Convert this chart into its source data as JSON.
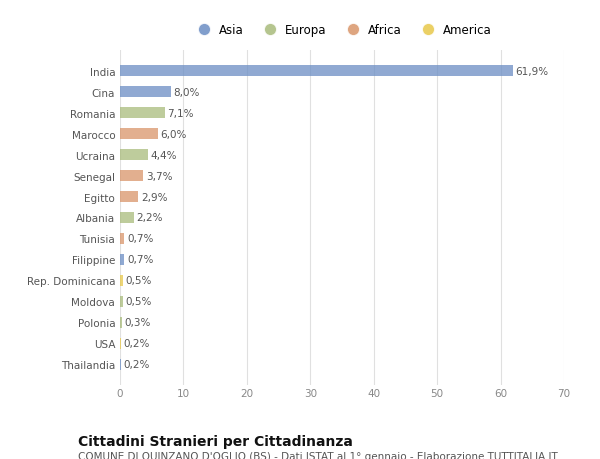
{
  "categories": [
    "India",
    "Cina",
    "Romania",
    "Marocco",
    "Ucraina",
    "Senegal",
    "Egitto",
    "Albania",
    "Tunisia",
    "Filippine",
    "Rep. Dominicana",
    "Moldova",
    "Polonia",
    "USA",
    "Thailandia"
  ],
  "values": [
    61.9,
    8.0,
    7.1,
    6.0,
    4.4,
    3.7,
    2.9,
    2.2,
    0.7,
    0.7,
    0.5,
    0.5,
    0.3,
    0.2,
    0.2
  ],
  "labels": [
    "61,9%",
    "8,0%",
    "7,1%",
    "6,0%",
    "4,4%",
    "3,7%",
    "2,9%",
    "2,2%",
    "0,7%",
    "0,7%",
    "0,5%",
    "0,5%",
    "0,3%",
    "0,2%",
    "0,2%"
  ],
  "colors": [
    "#6b8dc4",
    "#6b8dc4",
    "#a8bb7b",
    "#d9956a",
    "#a8bb7b",
    "#d9956a",
    "#d9956a",
    "#a8bb7b",
    "#d9956a",
    "#6b8dc4",
    "#e8c84a",
    "#a8bb7b",
    "#a8bb7b",
    "#e8c84a",
    "#6b8dc4"
  ],
  "legend_labels": [
    "Asia",
    "Europa",
    "Africa",
    "America"
  ],
  "legend_colors": [
    "#6b8dc4",
    "#a8bb7b",
    "#d9956a",
    "#e8c84a"
  ],
  "title": "Cittadini Stranieri per Cittadinanza",
  "subtitle": "COMUNE DI QUINZANO D'OGLIO (BS) - Dati ISTAT al 1° gennaio - Elaborazione TUTTITALIA.IT",
  "xlim": [
    0,
    70
  ],
  "xticks": [
    0,
    10,
    20,
    30,
    40,
    50,
    60,
    70
  ],
  "background_color": "#ffffff",
  "plot_bg_color": "#ffffff",
  "grid_color": "#e0e0e0",
  "title_fontsize": 10,
  "subtitle_fontsize": 7.5,
  "label_fontsize": 7.5,
  "tick_fontsize": 7.5,
  "legend_fontsize": 8.5
}
